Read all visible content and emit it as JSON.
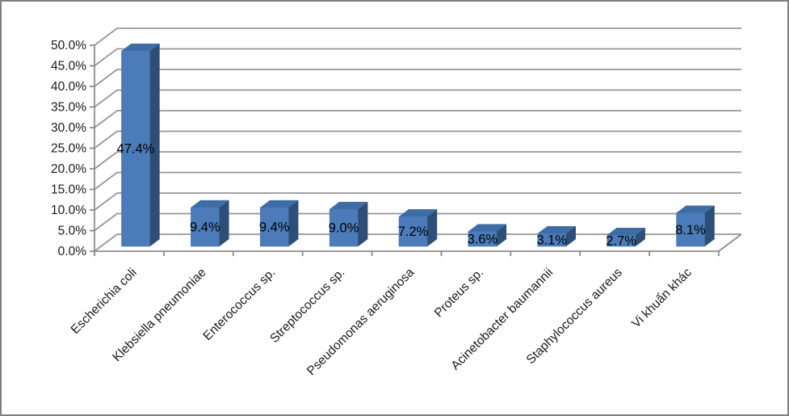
{
  "frame": {
    "background": "#ffffff",
    "border_color": "#7f7f7f"
  },
  "chart_data": {
    "type": "bar",
    "variant": "3d-column",
    "categories": [
      "Escherichia coli",
      "Klebsiella pneumoniae",
      "Enterococcus sp.",
      "Streptococcus sp.",
      "Pseudomonas aeruginosa",
      "Proteus sp.",
      "Acinetobacter baumannii",
      "Staphylococcus aureus",
      "Vi khuẩn khác"
    ],
    "values": [
      47.4,
      9.4,
      9.4,
      9.0,
      7.2,
      3.6,
      3.1,
      2.7,
      8.1
    ],
    "data_labels": [
      "47.4%",
      "9.4%",
      "9.4%",
      "9.0%",
      "7.2%",
      "3.6%",
      "3.1%",
      "2.7%",
      "8.1%"
    ],
    "y_axis": {
      "min": 0,
      "max": 50,
      "step": 5,
      "tick_labels": [
        "0.0%",
        "5.0%",
        "10.0%",
        "15.0%",
        "20.0%",
        "25.0%",
        "30.0%",
        "35.0%",
        "40.0%",
        "45.0%",
        "50.0%"
      ]
    },
    "grid": true,
    "legend": false,
    "colors": {
      "bar_front": "#4b7bb8",
      "bar_top": "#3e6da5",
      "bar_side": "#2d4e77",
      "gridline": "#969696",
      "axis": "#8c8c8c",
      "label_text": "#000000",
      "tick_text": "#1a1a1a"
    }
  }
}
